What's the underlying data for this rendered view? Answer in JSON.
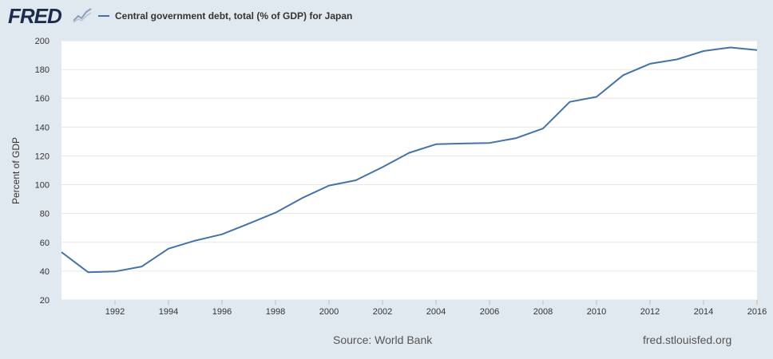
{
  "header": {
    "logo_text": "FRED",
    "logo_icon": "chart-trend-icon"
  },
  "colors": {
    "series": "#4572a7",
    "background": "#e1e9f0",
    "plot_background": "#ffffff",
    "grid": "#e6e6e6"
  },
  "footer": {
    "source": "Source: World Bank",
    "url": "fred.stlouisfed.org"
  },
  "chart_data": {
    "type": "line",
    "title": "",
    "xlabel": "",
    "ylabel": "Percent of GDP",
    "legend_position": "top-left",
    "grid": true,
    "xlim": [
      1990,
      2016
    ],
    "ylim": [
      20,
      200
    ],
    "x_ticks": [
      "1992",
      "1994",
      "1996",
      "1998",
      "2000",
      "2002",
      "2004",
      "2006",
      "2008",
      "2010",
      "2012",
      "2014",
      "2016"
    ],
    "y_ticks": [
      "20",
      "40",
      "60",
      "80",
      "100",
      "120",
      "140",
      "160",
      "180",
      "200"
    ],
    "series": [
      {
        "name": "Central government debt, total (% of GDP) for Japan",
        "x": [
          1990,
          1991,
          1992,
          1993,
          1994,
          1995,
          1996,
          1997,
          1998,
          1999,
          2000,
          2001,
          2002,
          2003,
          2004,
          2005,
          2006,
          2007,
          2008,
          2009,
          2010,
          2011,
          2012,
          2013,
          2014,
          2015,
          2016
        ],
        "values": [
          53.2,
          39.2,
          39.8,
          43.2,
          55.6,
          61.2,
          65.6,
          73.0,
          80.6,
          90.8,
          99.4,
          103.1,
          112.2,
          122.2,
          128.1,
          128.6,
          129.0,
          132.4,
          139.0,
          157.5,
          161.0,
          176.1,
          184.0,
          187.0,
          192.8,
          195.3,
          193.5
        ]
      }
    ]
  }
}
